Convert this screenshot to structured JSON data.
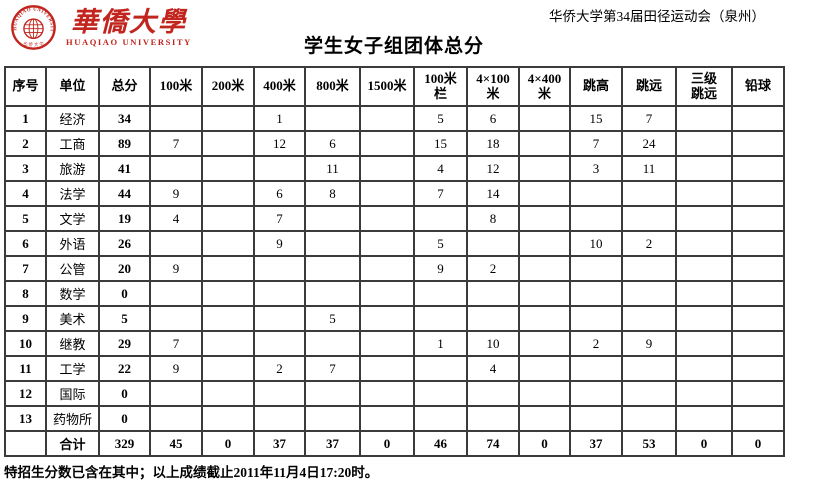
{
  "header": {
    "meet_title": "华侨大学第34届田径运动会（泉州）",
    "page_title": "学生女子组团体总分",
    "logo": {
      "seal_text": "HUAQIAO UNIVERSITY",
      "seal_bottom_text": "华 侨 大 学",
      "calligraphy": "華僑大學",
      "latin_name": "HUAQIAO UNIVERSITY"
    }
  },
  "colors": {
    "brand_red": "#c2241e",
    "border": "#3b3b3b",
    "text": "#000000"
  },
  "table": {
    "headers": [
      "序号",
      "单位",
      "总分",
      "100米",
      "200米",
      "400米",
      "800米",
      "1500米",
      "100米\n栏",
      "4×100\n米",
      "4×400\n米",
      "跳高",
      "跳远",
      "三级\n跳远",
      "铅球"
    ],
    "rows": [
      {
        "seq": "1",
        "unit": "经济",
        "total": "34",
        "events": [
          "",
          "",
          "1",
          "",
          "",
          "5",
          "6",
          "",
          "15",
          "7",
          "",
          ""
        ]
      },
      {
        "seq": "2",
        "unit": "工商",
        "total": "89",
        "events": [
          "7",
          "",
          "12",
          "6",
          "",
          "15",
          "18",
          "",
          "7",
          "24",
          "",
          ""
        ]
      },
      {
        "seq": "3",
        "unit": "旅游",
        "total": "41",
        "events": [
          "",
          "",
          "",
          "11",
          "",
          "4",
          "12",
          "",
          "3",
          "11",
          "",
          ""
        ]
      },
      {
        "seq": "4",
        "unit": "法学",
        "total": "44",
        "events": [
          "9",
          "",
          "6",
          "8",
          "",
          "7",
          "14",
          "",
          "",
          "",
          "",
          ""
        ]
      },
      {
        "seq": "5",
        "unit": "文学",
        "total": "19",
        "events": [
          "4",
          "",
          "7",
          "",
          "",
          "",
          "8",
          "",
          "",
          "",
          "",
          ""
        ]
      },
      {
        "seq": "6",
        "unit": "外语",
        "total": "26",
        "events": [
          "",
          "",
          "9",
          "",
          "",
          "5",
          "",
          "",
          "10",
          "2",
          "",
          ""
        ]
      },
      {
        "seq": "7",
        "unit": "公管",
        "total": "20",
        "events": [
          "9",
          "",
          "",
          "",
          "",
          "9",
          "2",
          "",
          "",
          "",
          "",
          ""
        ]
      },
      {
        "seq": "8",
        "unit": "数学",
        "total": "0",
        "events": [
          "",
          "",
          "",
          "",
          "",
          "",
          "",
          "",
          "",
          "",
          "",
          ""
        ]
      },
      {
        "seq": "9",
        "unit": "美术",
        "total": "5",
        "events": [
          "",
          "",
          "",
          "5",
          "",
          "",
          "",
          "",
          "",
          "",
          "",
          ""
        ]
      },
      {
        "seq": "10",
        "unit": "继教",
        "total": "29",
        "events": [
          "7",
          "",
          "",
          "",
          "",
          "1",
          "10",
          "",
          "2",
          "9",
          "",
          ""
        ]
      },
      {
        "seq": "11",
        "unit": "工学",
        "total": "22",
        "events": [
          "9",
          "",
          "2",
          "7",
          "",
          "",
          "4",
          "",
          "",
          "",
          "",
          ""
        ]
      },
      {
        "seq": "12",
        "unit": "国际",
        "total": "0",
        "events": [
          "",
          "",
          "",
          "",
          "",
          "",
          "",
          "",
          "",
          "",
          "",
          ""
        ]
      },
      {
        "seq": "13",
        "unit": "药物所",
        "total": "0",
        "events": [
          "",
          "",
          "",
          "",
          "",
          "",
          "",
          "",
          "",
          "",
          "",
          ""
        ]
      }
    ],
    "total_row": {
      "seq": "",
      "unit": "合计",
      "total": "329",
      "events": [
        "45",
        "0",
        "37",
        "37",
        "0",
        "46",
        "74",
        "0",
        "37",
        "53",
        "0",
        "0"
      ]
    }
  },
  "footer": {
    "note": "特招生分数已含在其中；以上成绩截止2011年11月4日17:20时。"
  }
}
